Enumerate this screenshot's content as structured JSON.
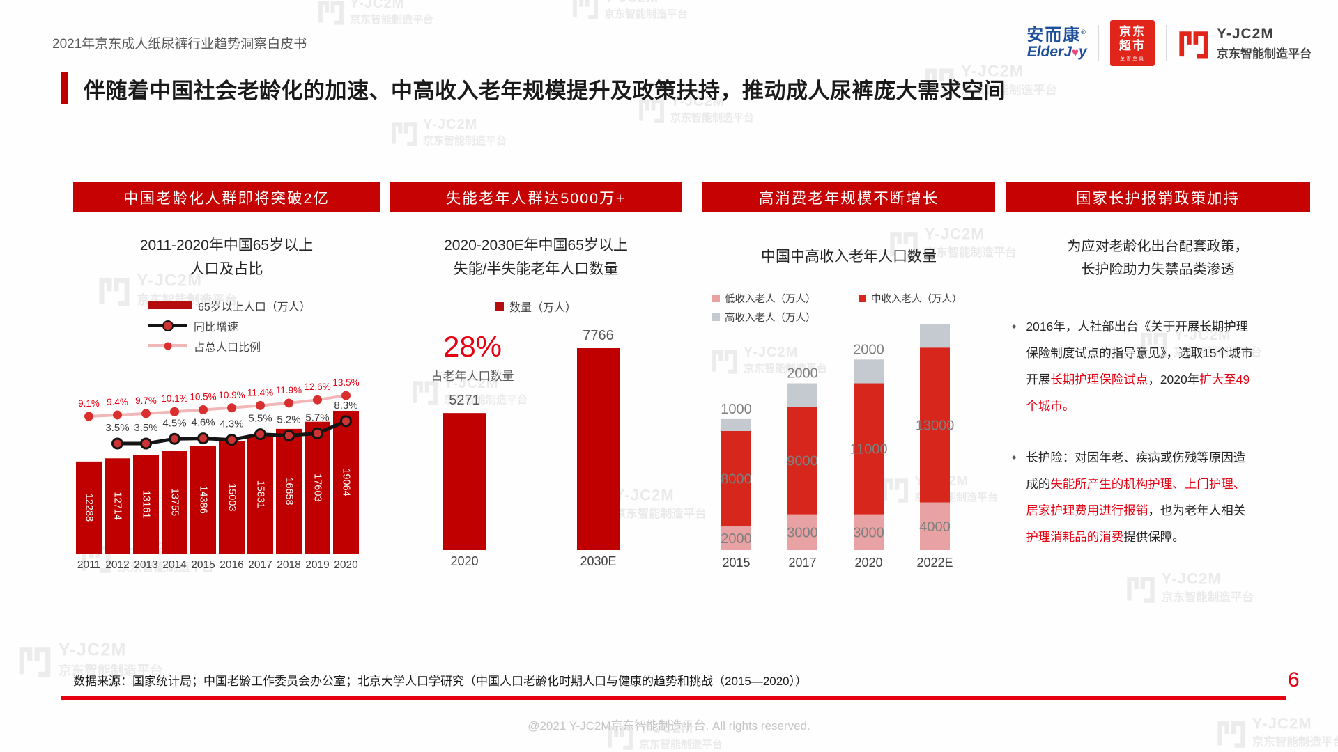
{
  "page": {
    "header_label": "2021年京东成人纸尿裤行业趋势洞察白皮书",
    "headline": "伴随着中国社会老龄化的加速、中高收入老年规模提升及政策扶持，推动成人尿裤庞大需求空间",
    "footer_source": "数据来源：国家统计局；中国老龄工作委员会办公室；北京大学人口学研究（中国人口老龄化时期人口与健康的趋势和挑战（2015—2020））",
    "page_number": "6",
    "copyright": "@2021 Y-JC2M京东智能制造平台. All rights reserved."
  },
  "logos": {
    "elderjoy_cn": "安而康",
    "elderjoy_reg": "®",
    "elderjoy_en_pre": "ElderJ",
    "elderjoy_heart": "♥",
    "elderjoy_en_post": "y",
    "jd_market_line1": "京东",
    "jd_market_line2": "超市",
    "jd_market_sub": "至省至真",
    "jc2m_name": "Y-JC2M",
    "jc2m_cn": "京东智能制造平台"
  },
  "watermark": {
    "line1": "Y-JC2M",
    "line2": "京东智能制造平台"
  },
  "sections": [
    {
      "banner": "中国老龄化人群即将突破2亿"
    },
    {
      "banner": "失能老年人群达5000万+"
    },
    {
      "banner": "高消费老年规模不断增长"
    },
    {
      "banner": "国家长护报销政策加持"
    }
  ],
  "chart_data": [
    {
      "id": "aging-population-65plus",
      "type": "bar",
      "title_lines": [
        "2011-2020年中国65岁以上",
        "人口及占比"
      ],
      "categories": [
        "2011",
        "2012",
        "2013",
        "2014",
        "2015",
        "2016",
        "2017",
        "2018",
        "2019",
        "2020"
      ],
      "series": [
        {
          "name": "65岁以上人口（万人）",
          "type": "bar",
          "color": "#c00000",
          "values": [
            12288,
            12714,
            13161,
            13755,
            14386,
            15003,
            15831,
            16658,
            17603,
            19064
          ]
        },
        {
          "name": "同比增速",
          "type": "line",
          "color": "#141414",
          "point_color": "#cd3333",
          "values": [
            null,
            3.5,
            3.5,
            4.5,
            4.6,
            4.3,
            5.5,
            5.2,
            5.7,
            8.3
          ],
          "labels": [
            "",
            "3.5%",
            "3.5%",
            "4.5%",
            "4.6%",
            "4.3%",
            "5.5%",
            "5.2%",
            "5.7%",
            "8.3%"
          ]
        },
        {
          "name": "占总人口比例",
          "type": "line",
          "color": "#f1b6b6",
          "point_color": "#da2f2f",
          "values": [
            9.1,
            9.4,
            9.7,
            10.1,
            10.5,
            10.9,
            11.4,
            11.9,
            12.6,
            13.5
          ],
          "labels": [
            "9.1%",
            "9.4%",
            "9.7%",
            "10.1%",
            "10.5%",
            "10.9%",
            "11.4%",
            "11.9%",
            "12.6%",
            "13.5%"
          ]
        }
      ],
      "legend_position": "top",
      "grid": false
    },
    {
      "id": "disabled-elderly",
      "type": "bar",
      "title_lines": [
        "2020-2030E年中国65岁以上",
        "失能/半失能老年人口数量"
      ],
      "legend": [
        "数量（万人）"
      ],
      "bar_color": "#c00000",
      "categories": [
        "2020",
        "2030E"
      ],
      "values": [
        5271,
        7766
      ],
      "callout": {
        "value": "28%",
        "label": "占老年人口数量"
      },
      "grid": false
    },
    {
      "id": "middle-high-income-elderly",
      "type": "stacked-bar",
      "title": "中国中高收入老年人口数量",
      "categories": [
        "2015",
        "2017",
        "2020",
        "2022E"
      ],
      "series": [
        {
          "name": "低收入老人（万人）",
          "color": "#e9a2a3",
          "values": [
            2000,
            3000,
            3000,
            4000
          ]
        },
        {
          "name": "中收入老人（万人）",
          "color": "#d7261c",
          "values": [
            8000,
            9000,
            11000,
            13000
          ]
        },
        {
          "name": "高收入老人（万人）",
          "color": "#c5cad0",
          "values": [
            1000,
            2000,
            2000,
            2000
          ]
        }
      ],
      "value_label_color": "#7f7f7f",
      "grid": false
    }
  ],
  "policy": {
    "title_line1": "为应对老龄化出台配套政策，",
    "title_line2": "长护险助力失禁品类渗透",
    "bullets": [
      {
        "segments": [
          {
            "text": "2016年，人社部出台《关于开展长期护理保险制度试点的指导意见》，选取15个城市开展",
            "red": false
          },
          {
            "text": "长期护理保险试点",
            "red": true
          },
          {
            "text": "，2020年",
            "red": false
          },
          {
            "text": "扩大至49个城市。",
            "red": true
          }
        ]
      },
      {
        "segments": [
          {
            "text": "长护险：对因年老、疾病或伤残等原因造成的",
            "red": false
          },
          {
            "text": "失能所产生的机构护理、上门护理、居家护理费用进行报销",
            "red": true
          },
          {
            "text": "，也为老年人相关",
            "red": false
          },
          {
            "text": "护理消耗品的消费",
            "red": true
          },
          {
            "text": "提供保障。",
            "red": false
          }
        ]
      }
    ]
  }
}
